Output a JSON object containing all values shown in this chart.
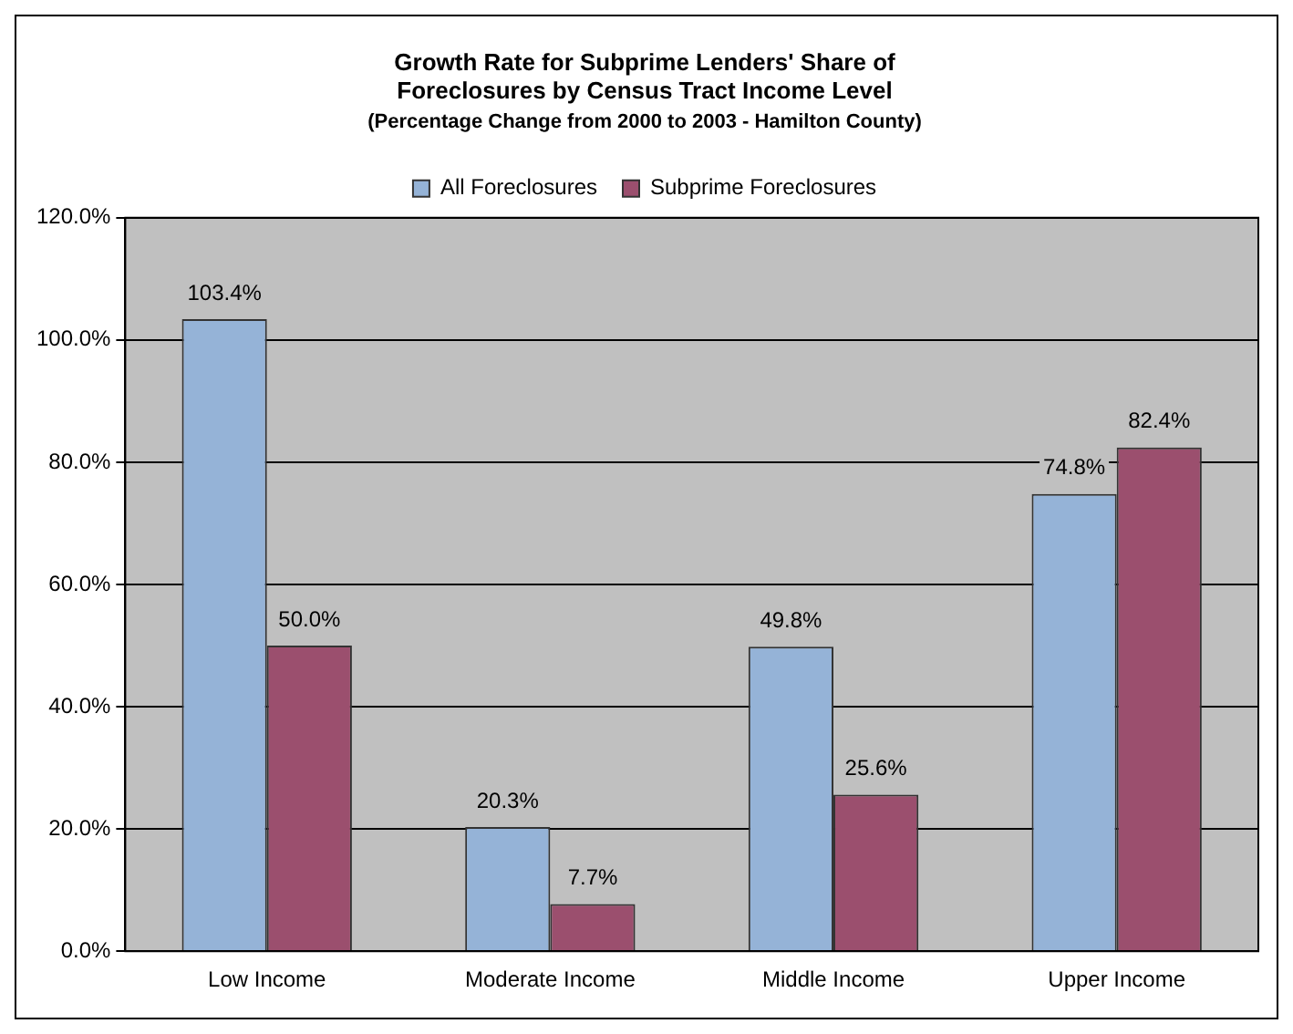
{
  "chart_data": {
    "type": "bar",
    "title": "Growth Rate for Subprime Lenders' Share of Foreclosures by Census Tract Income Level",
    "subtitle": "(Percentage Change from 2000 to 2003 - Hamilton County)",
    "categories": [
      "Low Income",
      "Moderate Income",
      "Middle Income",
      "Upper Income"
    ],
    "series": [
      {
        "name": "All Foreclosures",
        "color": "#95b3d7",
        "values": [
          103.4,
          20.3,
          49.8,
          74.8
        ],
        "value_labels": [
          "103.4%",
          "20.3%",
          "49.8%",
          "74.8%"
        ]
      },
      {
        "name": "Subprime Foreclosures",
        "color": "#9b4f6e",
        "values": [
          50.0,
          7.7,
          25.6,
          82.4
        ],
        "value_labels": [
          "50.0%",
          "7.7%",
          "25.6%",
          "82.4%"
        ]
      }
    ],
    "ylim": [
      0,
      120
    ],
    "yticks": [
      {
        "value": 0,
        "label": "0.0%"
      },
      {
        "value": 20,
        "label": "20.0%"
      },
      {
        "value": 40,
        "label": "40.0%"
      },
      {
        "value": 60,
        "label": "60.0%"
      },
      {
        "value": 80,
        "label": "80.0%"
      },
      {
        "value": 100,
        "label": "100.0%"
      },
      {
        "value": 120,
        "label": "120.0%"
      }
    ],
    "grid": "y",
    "legend": "top"
  }
}
